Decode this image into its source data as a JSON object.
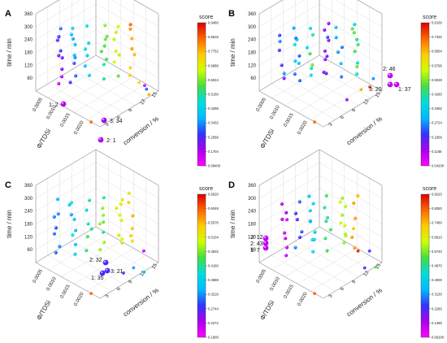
{
  "colors": {
    "colormap": [
      "#ff00ff",
      "#aa00ee",
      "#3333ff",
      "#00bbff",
      "#00dddd",
      "#44dd44",
      "#ccff00",
      "#ffcc00",
      "#ff6600",
      "#dd0000"
    ],
    "frame": "#999999",
    "grid": "#d6d6d6"
  },
  "chart_data": [
    {
      "panel": "A",
      "type": "scatter",
      "title": "",
      "xlabel": "conversion / %",
      "ylabel": "time / min",
      "zlabel": "Φ/TDSi",
      "z_ticks": [
        "0.0005",
        "0.0010",
        "0.0015",
        "0.0020"
      ],
      "x_ticks": [
        "3",
        "6",
        "9",
        "12",
        "15"
      ],
      "y_ticks": [
        "60",
        "120",
        "180",
        "240",
        "300",
        "360"
      ],
      "colorbar": {
        "title": "score",
        "ticks": [
          "0.9480",
          "0.8616",
          "0.7752",
          "0.6888",
          "0.6024",
          "0.5160",
          "0.4296",
          "0.3432",
          "0.2568",
          "0.1704",
          "0.08400"
        ]
      },
      "annotations": [
        "1: 2",
        "3: 34",
        "2: 1"
      ],
      "highlighted": [
        {
          "label": "1: 2",
          "score": 0.1
        },
        {
          "label": "3: 34",
          "score": 0.12
        },
        {
          "label": "2: 1",
          "score": 0.1
        }
      ]
    },
    {
      "panel": "B",
      "type": "scatter",
      "title": "",
      "xlabel": "conversion / %",
      "ylabel": "time / min",
      "zlabel": "Φ/TDSi",
      "z_ticks": [
        "0.0005",
        "0.0010",
        "0.0015",
        "0.0020"
      ],
      "x_ticks": [
        "3",
        "6",
        "9",
        "12",
        "15"
      ],
      "y_ticks": [
        "60",
        "120",
        "180",
        "240",
        "300",
        "360"
      ],
      "colorbar": {
        "title": "score",
        "ticks": [
          "0.8100",
          "0.7332",
          "0.6564",
          "0.5796",
          "0.5028",
          "0.4260",
          "0.3492",
          "0.2724",
          "0.1956",
          "0.1188",
          "0.04200"
        ]
      },
      "annotations": [
        "2: 46",
        "3: 20",
        "1: 37"
      ],
      "highlighted": [
        {
          "label": "2: 46",
          "score": 0.08
        },
        {
          "label": "3: 20",
          "score": 0.08
        },
        {
          "label": "1: 37",
          "score": 0.08
        }
      ]
    },
    {
      "panel": "C",
      "type": "scatter",
      "title": "",
      "xlabel": "conversion / %",
      "ylabel": "time / min",
      "zlabel": "Φ/TDSi",
      "z_ticks": [
        "0.0005",
        "0.0010",
        "0.0015",
        "0.0020"
      ],
      "x_ticks": [
        "3",
        "6",
        "9",
        "12",
        "15"
      ],
      "y_ticks": [
        "60",
        "120",
        "180",
        "240",
        "300",
        "360"
      ],
      "colorbar": {
        "title": "score",
        "ticks": [
          "0.6520",
          "0.6048",
          "0.5576",
          "0.5104",
          "0.4632",
          "0.4160",
          "0.3688",
          "0.3216",
          "0.2744",
          "0.2272",
          "0.1800"
        ]
      },
      "annotations": [
        "2: 32",
        "3: 21",
        "1: 35"
      ],
      "highlighted": [
        {
          "label": "2: 32",
          "score": 0.2
        },
        {
          "label": "3: 21",
          "score": 0.2
        },
        {
          "label": "1: 35",
          "score": 0.2
        }
      ]
    },
    {
      "panel": "D",
      "type": "scatter",
      "title": "",
      "xlabel": "conversion / %",
      "ylabel": "time / min",
      "zlabel": "Φ/TDSi",
      "z_ticks": [
        "0.0005",
        "0.0010",
        "0.0015",
        "0.0020"
      ],
      "x_ticks": [
        "3",
        "6",
        "9",
        "12",
        "15"
      ],
      "y_ticks": [
        "60",
        "120",
        "180",
        "240",
        "300",
        "360"
      ],
      "colorbar": {
        "title": "score",
        "ticks": [
          "0.9220",
          "0.8350",
          "0.7480",
          "0.6610",
          "0.5740",
          "0.4870",
          "0.4000",
          "0.3130",
          "0.2260",
          "0.1390",
          "0.05200"
        ]
      },
      "annotations": [
        "3: 12",
        "2: 43",
        "1: 7"
      ],
      "highlighted": [
        {
          "label": "3: 12",
          "score": 0.08
        },
        {
          "label": "2: 43",
          "score": 0.08
        },
        {
          "label": "1: 7",
          "score": 0.08
        }
      ]
    }
  ]
}
